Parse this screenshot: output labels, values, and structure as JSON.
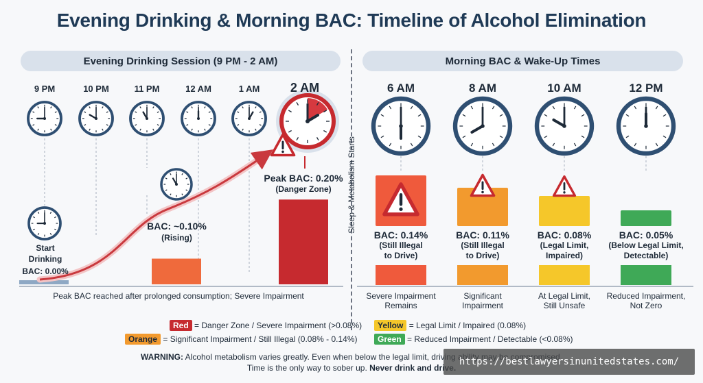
{
  "title": "Evening Drinking & Morning BAC: Timeline of Alcohol Elimination",
  "evening": {
    "banner": "Evening Drinking Session (9 PM - 2 AM)",
    "times": [
      "9 PM",
      "10 PM",
      "11 PM",
      "12 AM",
      "1 AM",
      "2 AM"
    ],
    "start": {
      "line1": "Start",
      "line2": "Drinking",
      "bac": "BAC: 0.00%"
    },
    "rising": {
      "bac": "BAC: ~0.10%",
      "note": "(Rising)"
    },
    "peak": {
      "bac": "Peak BAC: 0.20%",
      "note": "(Danger Zone)"
    },
    "baseline_note": "Peak BAC reached after prolonged consumption; Severe Impairment"
  },
  "divider_label": "Sleep & Metabolism Starts",
  "morning": {
    "banner": "Morning BAC & Wake-Up Times",
    "items": [
      {
        "time": "6 AM",
        "bac": "BAC: 0.14%",
        "note1": "(Still Illegal",
        "note2": "to Drive)",
        "desc1": "Severe Impairment",
        "desc2": "Remains"
      },
      {
        "time": "8 AM",
        "bac": "BAC: 0.11%",
        "note1": "(Still Illegal",
        "note2": "to Drive)",
        "desc1": "Significant",
        "desc2": "Impairment"
      },
      {
        "time": "10 AM",
        "bac": "BAC: 0.08%",
        "note1": "(Legal Limit,",
        "note2": "Impaired)",
        "desc1": "At Legal Limit,",
        "desc2": "Still Unsafe"
      },
      {
        "time": "12 PM",
        "bac": "BAC: 0.05%",
        "note1": "(Below Legal Limit,",
        "note2": "Detectable)",
        "desc1": "Reduced Impairment,",
        "desc2": "Not Zero"
      }
    ]
  },
  "chart_data": {
    "type": "bar",
    "categories": [
      "9 PM",
      "11 PM",
      "2 AM",
      "6 AM",
      "8 AM",
      "10 AM",
      "12 PM"
    ],
    "values": [
      0.0,
      0.1,
      0.2,
      0.14,
      0.11,
      0.08,
      0.05
    ],
    "colors": [
      "#8ea8c4",
      "#ef6a3c",
      "#c62a2f",
      "#ef5a3c",
      "#f29a2e",
      "#f5c72a",
      "#3fa957"
    ]
  },
  "legend": {
    "red_chip": "Red",
    "red_text": "= Danger Zone / Severe Impairment (>0.08%)",
    "yellow_chip": "Yellow",
    "yellow_text": "= Legal Limit / Impaired (0.08%)",
    "orange_chip": "Orange",
    "orange_text": "= Significant Impairment / Still Illegal (0.08% - 0.14%)",
    "green_chip": "Green",
    "green_text": "= Reduced Impairment / Detectable (<0.08%)"
  },
  "colors": {
    "red": "#c62a2f",
    "orange": "#ef6a3c",
    "amber": "#f29a2e",
    "yellow": "#f5c72a",
    "green": "#3fa957",
    "navy": "#1f3a56",
    "clock_rim": "#2f4f72"
  },
  "warning": {
    "label": "WARNING:",
    "line1": "Alcohol metabolism varies greatly. Even when below the legal limit, driving ability may be compromised.",
    "line2": "Time is the only way to sober up.",
    "line2_bold": "Never drink and drive."
  },
  "watermark": "https://bestlawyersinunitedstates.com/"
}
